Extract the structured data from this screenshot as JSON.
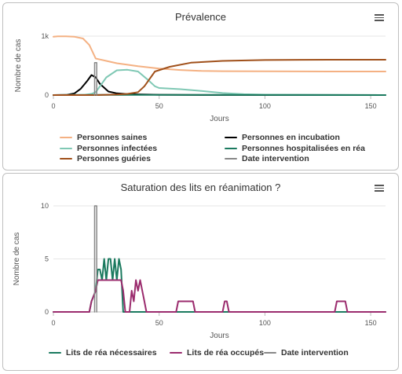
{
  "chart_data": [
    {
      "type": "line",
      "title": "Prévalence",
      "xlabel": "Jours",
      "ylabel": "Nombre de cas",
      "xlim": [
        0,
        157
      ],
      "ylim": [
        0,
        1000
      ],
      "xticks": [
        0,
        50,
        100,
        150
      ],
      "xtick_labels": [
        "0",
        "50",
        "100",
        "150"
      ],
      "yticks": [
        0,
        1000
      ],
      "ytick_labels": [
        "0",
        "1k"
      ],
      "legend_position": "bottom",
      "series": [
        {
          "name": "Personnes saines",
          "color": "#f4b183",
          "x": [
            0,
            2,
            6,
            10,
            14,
            17,
            20,
            25,
            30,
            40,
            50,
            60,
            70,
            80,
            100,
            130,
            157
          ],
          "values": [
            990,
            998,
            996,
            990,
            960,
            850,
            620,
            580,
            540,
            490,
            450,
            425,
            410,
            405,
            402,
            400,
            400
          ]
        },
        {
          "name": "Personnes en incubation",
          "color": "#000000",
          "x": [
            0,
            6,
            10,
            13,
            16,
            18,
            20,
            22,
            26,
            30,
            35,
            40,
            50,
            60,
            157
          ],
          "values": [
            0,
            3,
            30,
            110,
            240,
            340,
            300,
            190,
            60,
            30,
            18,
            12,
            5,
            2,
            0
          ]
        },
        {
          "name": "Personnes infectées",
          "color": "#7fc8b4",
          "x": [
            0,
            15,
            18,
            20,
            25,
            30,
            35,
            40,
            45,
            48,
            50,
            55,
            60,
            70,
            80,
            90,
            100,
            157
          ],
          "values": [
            0,
            5,
            20,
            50,
            300,
            420,
            430,
            400,
            250,
            150,
            120,
            110,
            100,
            70,
            35,
            15,
            6,
            0
          ]
        },
        {
          "name": "Personnes hospitalisées en réa",
          "color": "#1b7a5f",
          "x": [
            0,
            20,
            30,
            157
          ],
          "values": [
            0,
            3,
            4,
            0
          ]
        },
        {
          "name": "Personnes guéries",
          "color": "#a0501a",
          "x": [
            0,
            20,
            30,
            35,
            40,
            43,
            48,
            55,
            65,
            80,
            100,
            130,
            157
          ],
          "values": [
            0,
            0,
            10,
            20,
            50,
            150,
            400,
            480,
            550,
            580,
            595,
            600,
            600
          ]
        },
        {
          "name": "Date intervention",
          "color": "#888888",
          "x": [
            19.5,
            19.5,
            20.5,
            20.5
          ],
          "values": [
            0,
            550,
            550,
            0
          ]
        }
      ]
    },
    {
      "type": "line",
      "title": "Saturation des lits en réanimation ?",
      "xlabel": "Jours",
      "ylabel": "Nombre de cas",
      "xlim": [
        0,
        157
      ],
      "ylim": [
        0,
        10
      ],
      "xticks": [
        0,
        50,
        100,
        150
      ],
      "xtick_labels": [
        "0",
        "50",
        "100",
        "150"
      ],
      "yticks": [
        0,
        5,
        10
      ],
      "ytick_labels": [
        "0",
        "5",
        "10"
      ],
      "legend_position": "bottom",
      "series": [
        {
          "name": "Lits de réa nécessaires",
          "color": "#1b7a5f",
          "x": [
            0,
            17,
            18,
            20,
            21,
            22,
            23,
            24,
            25,
            26,
            27,
            28,
            29,
            30,
            31,
            32,
            33,
            34,
            157
          ],
          "values": [
            0,
            0,
            1,
            2,
            4,
            4,
            3,
            5,
            3,
            5,
            5,
            3,
            5,
            3,
            5,
            4,
            0,
            0,
            0
          ]
        },
        {
          "name": "Lits de réa occupés",
          "color": "#9b2c6e",
          "x": [
            0,
            17,
            18,
            20,
            21,
            22,
            32,
            33,
            34,
            36,
            37,
            38,
            39,
            40,
            41,
            42,
            43,
            44,
            58,
            59,
            60,
            66,
            67,
            68,
            80,
            81,
            82,
            83,
            84,
            85,
            133,
            134,
            135,
            138,
            139,
            157
          ],
          "values": [
            0,
            0,
            1,
            2,
            3,
            3,
            3,
            2,
            0,
            0,
            2,
            1,
            3,
            2,
            3,
            2,
            1,
            0,
            0,
            1,
            1,
            1,
            0,
            0,
            0,
            1,
            1,
            0,
            0,
            0,
            0,
            1,
            1,
            1,
            0,
            0
          ]
        },
        {
          "name": "Date intervention",
          "color": "#888888",
          "x": [
            19.5,
            19.5,
            20.5,
            20.5
          ],
          "values": [
            0,
            10,
            10,
            0
          ]
        }
      ]
    }
  ]
}
